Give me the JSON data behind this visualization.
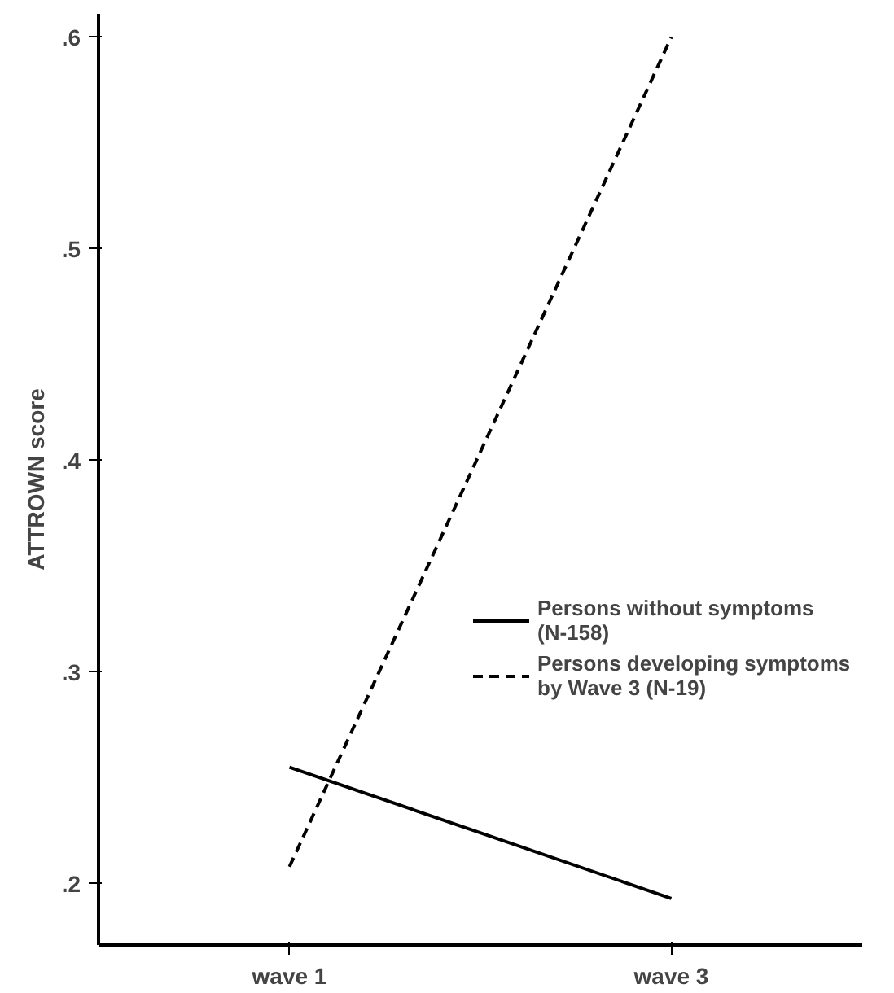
{
  "chart_data": {
    "type": "line",
    "ylabel": "ATTROWN score",
    "categories": [
      "wave 1",
      "wave 3"
    ],
    "series": [
      {
        "name": "Persons without symptoms\n(N-158)",
        "color": "#000000",
        "line_style": "solid",
        "values": [
          0.255,
          0.193
        ]
      },
      {
        "name": "Persons developing symptoms\nby Wave 3 (N-19)",
        "color": "#000000",
        "line_style": "dashed",
        "values": [
          0.208,
          0.6
        ]
      }
    ],
    "ylim": [
      0.171,
      0.611
    ],
    "yticks": [
      {
        "value": 0.2,
        "label": ".2"
      },
      {
        "value": 0.3,
        "label": ".3"
      },
      {
        "value": 0.4,
        "label": ".4"
      },
      {
        "value": 0.5,
        "label": ".5"
      },
      {
        "value": 0.6,
        "label": ".6"
      }
    ],
    "grid": false,
    "legend": "right",
    "marker": "none"
  }
}
